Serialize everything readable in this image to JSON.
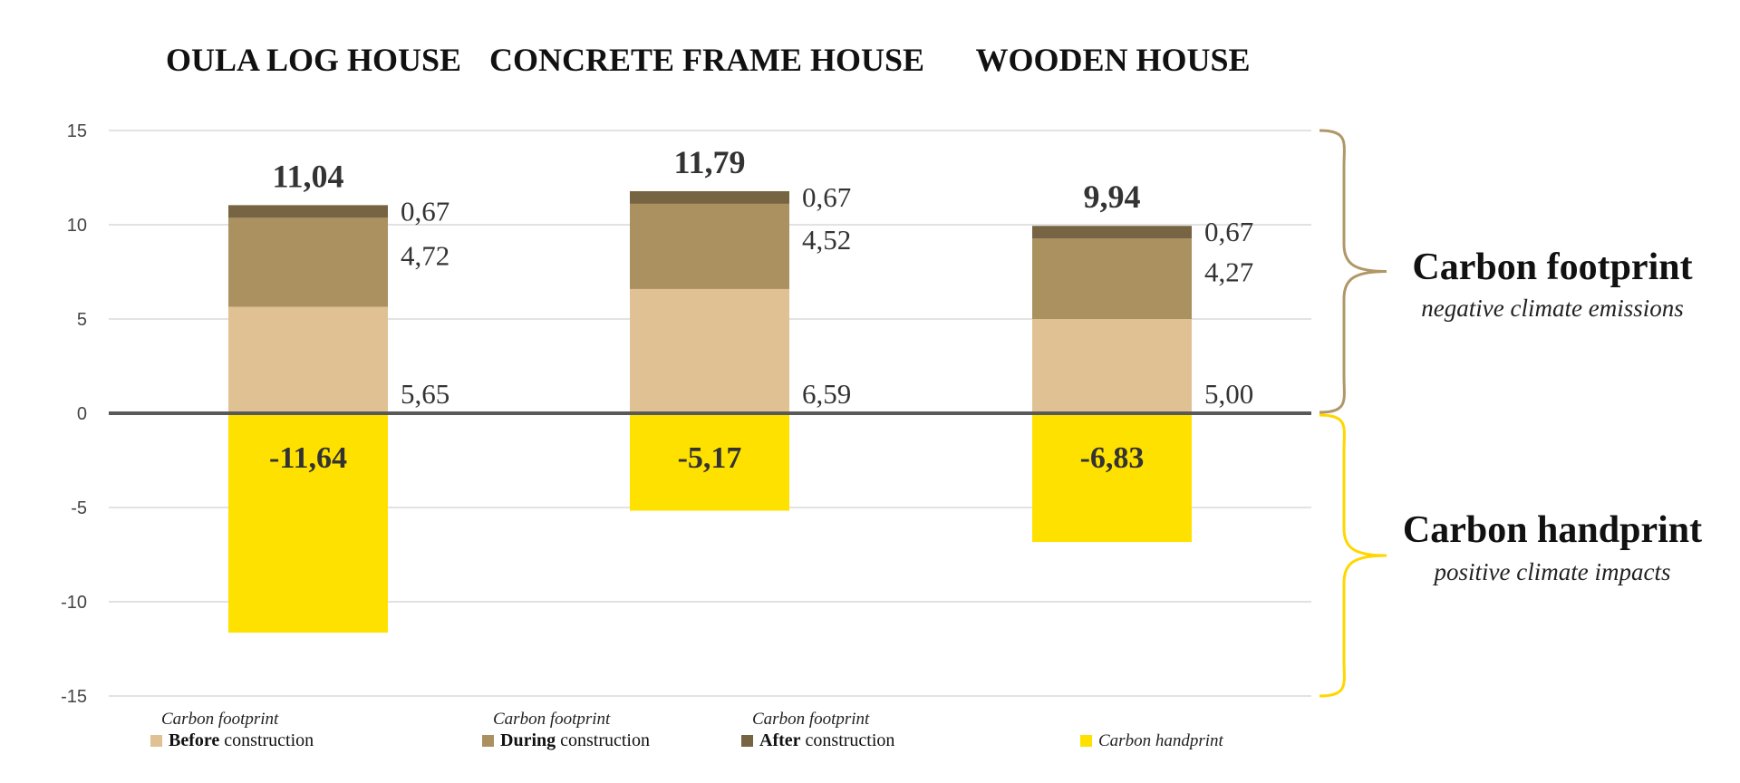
{
  "chart_data": {
    "type": "bar",
    "stacked": true,
    "categories": [
      "OULA LOG HOUSE",
      "CONCRETE FRAME HOUSE",
      "WOODEN HOUSE"
    ],
    "series": [
      {
        "key": "before",
        "values": [
          5.65,
          6.59,
          5.0
        ],
        "labels": [
          "5,65",
          "6,59",
          "5,00"
        ],
        "color": "#dfc193"
      },
      {
        "key": "during",
        "values": [
          4.72,
          4.52,
          4.27
        ],
        "labels": [
          "4,72",
          "4,52",
          "4,27"
        ],
        "color": "#ab9060"
      },
      {
        "key": "after",
        "values": [
          0.67,
          0.67,
          0.67
        ],
        "labels": [
          "0,67",
          "0,67",
          "0,67"
        ],
        "color": "#776442"
      },
      {
        "key": "handprint",
        "values": [
          -11.64,
          -5.17,
          -6.83
        ],
        "labels": [
          "-11,64",
          "-5,17",
          "-6,83"
        ],
        "color": "#ffe100"
      }
    ],
    "totals": [
      "11,04",
      "11,79",
      "9,94"
    ],
    "ylim": [
      -15,
      15
    ],
    "yticks": [
      15,
      10,
      5,
      0,
      -5,
      -10,
      -15
    ],
    "grid": true,
    "legend_position": "bottom",
    "legend": [
      {
        "caption": "Carbon footprint",
        "bold": "Before",
        "rest": " construction",
        "color": "#dfc193"
      },
      {
        "caption": "Carbon footprint",
        "bold": "During",
        "rest": " construction",
        "color": "#ab9060"
      },
      {
        "caption": "Carbon footprint",
        "bold": "After",
        "rest": " construction",
        "color": "#776442"
      },
      {
        "caption": "",
        "bold": "",
        "rest": "Carbon handprint",
        "italic": true,
        "color": "#ffe100"
      }
    ],
    "annotations": {
      "footprint": {
        "title": "Carbon footprint",
        "subtitle": "negative climate emissions",
        "color": "#b09768"
      },
      "handprint": {
        "title": "Carbon handprint",
        "subtitle": "positive climate impacts",
        "color": "#ffd700"
      }
    },
    "colors": {
      "grid": "#d9d9d9",
      "axis": "#595959"
    }
  }
}
